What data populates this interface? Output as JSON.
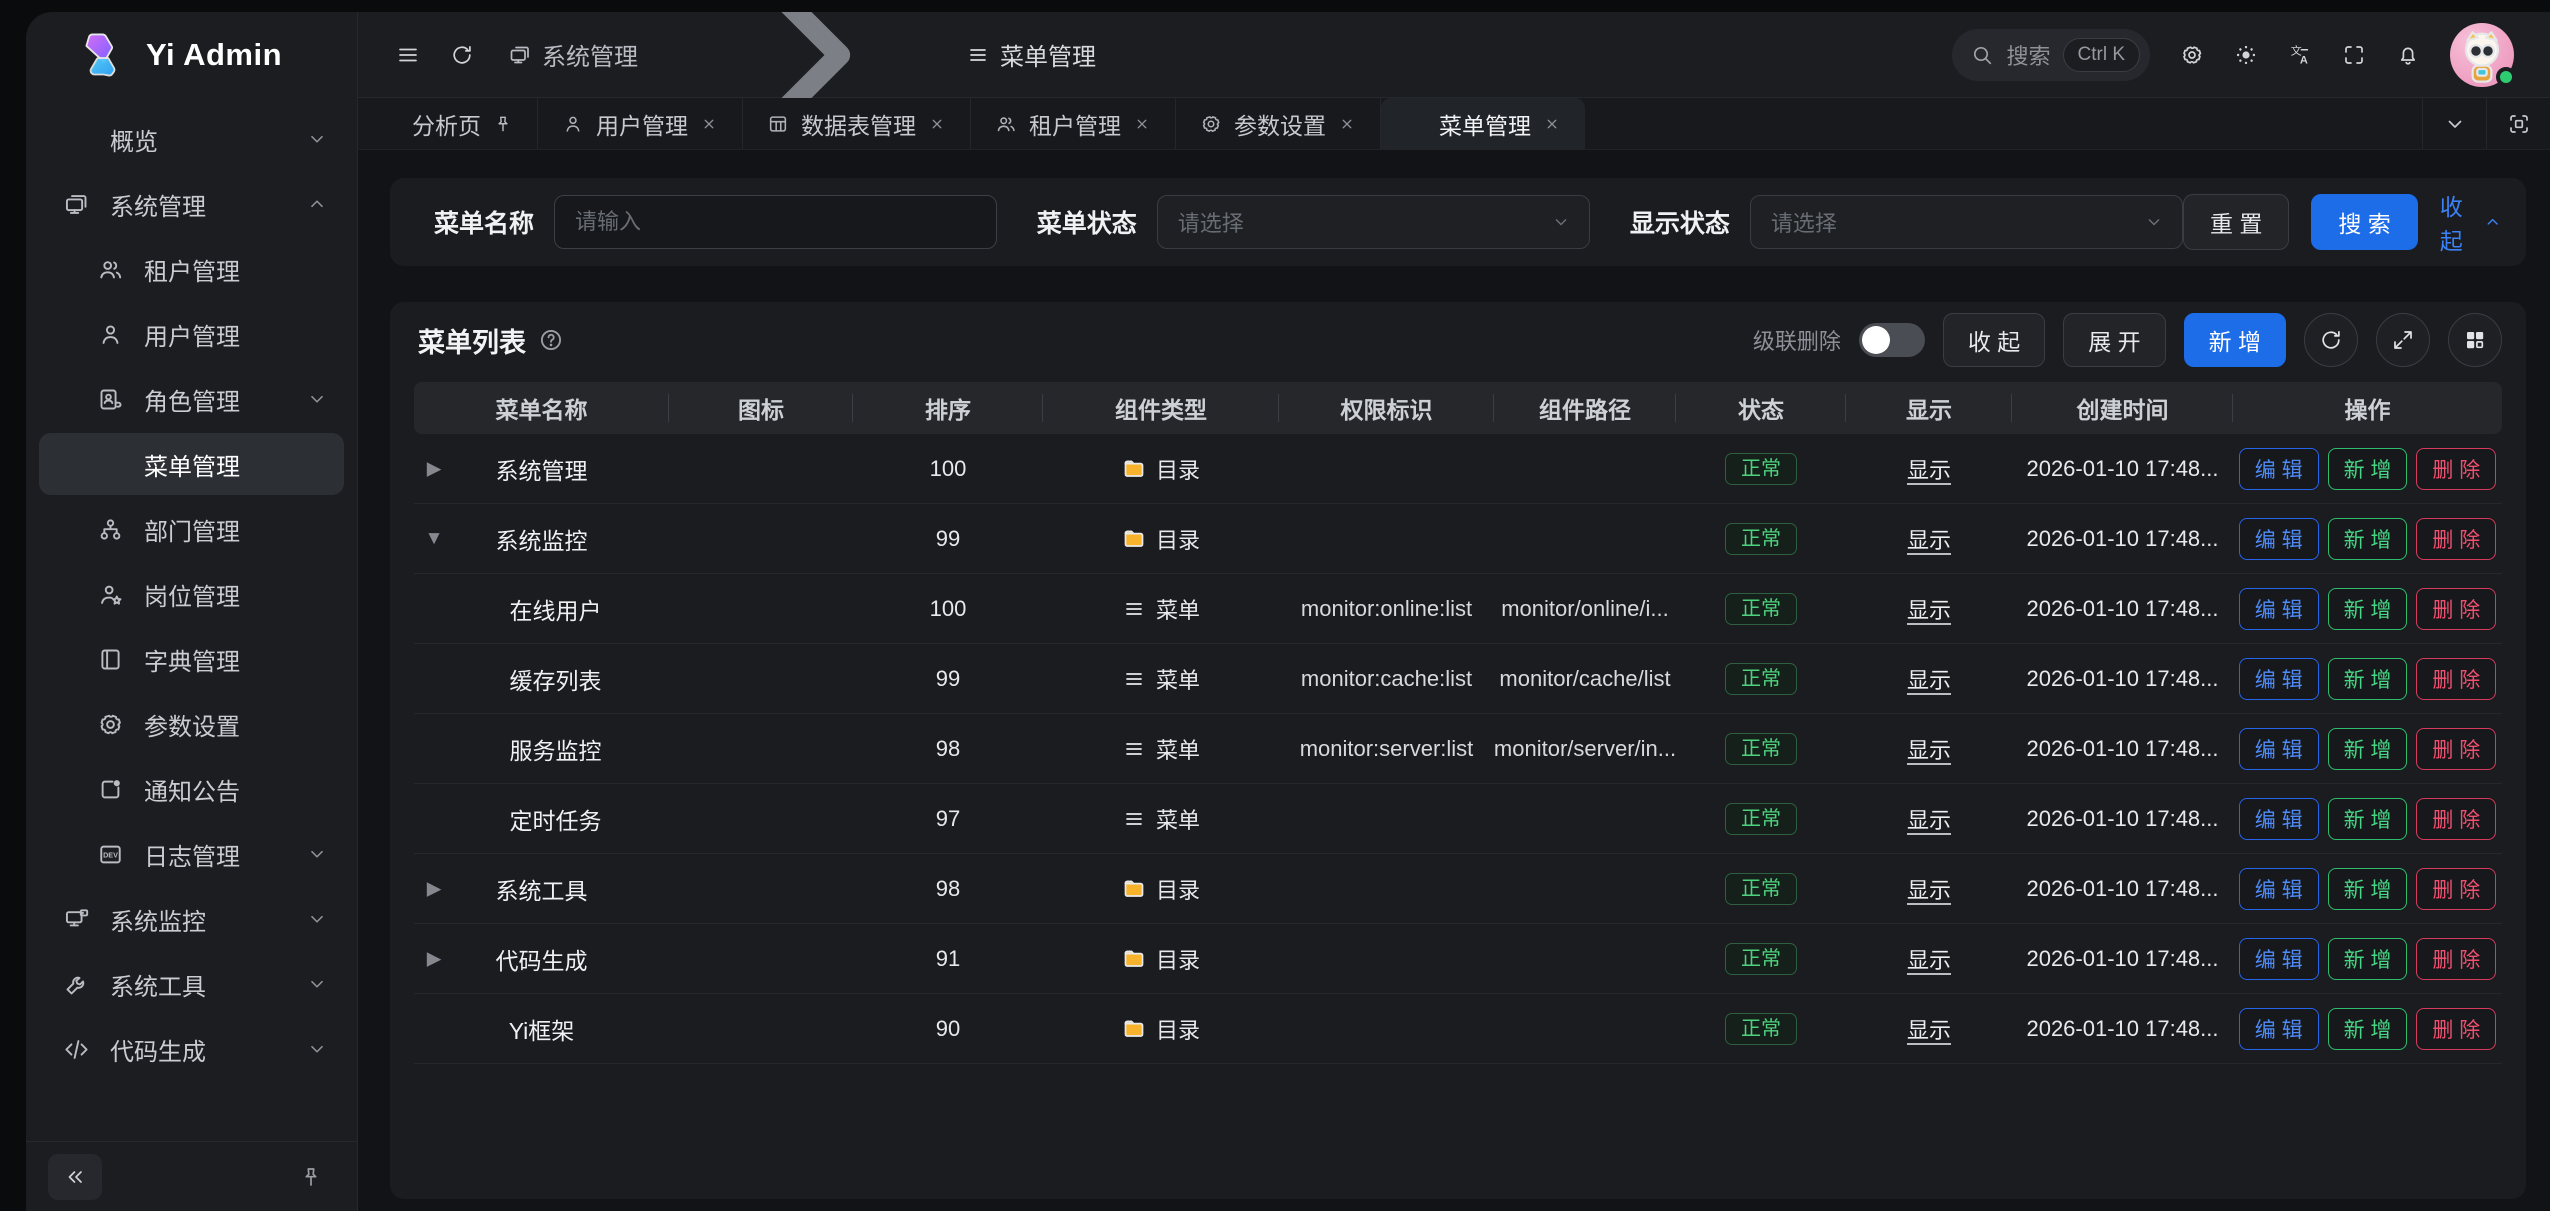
{
  "app": {
    "name": "Yi Admin"
  },
  "header": {
    "breadcrumb": [
      {
        "label": "系统管理",
        "icon": "desktop-icon"
      },
      {
        "label": "菜单管理",
        "icon": "menu-lines-icon"
      }
    ],
    "search": {
      "placeholder": "搜索",
      "shortcut": "Ctrl K"
    }
  },
  "tabs": [
    {
      "label": "分析页",
      "pinned": true
    },
    {
      "label": "用户管理",
      "icon": "person",
      "closable": true
    },
    {
      "label": "数据表管理",
      "icon": "table",
      "closable": true
    },
    {
      "label": "租户管理",
      "icon": "people",
      "closable": true
    },
    {
      "label": "参数设置",
      "icon": "gear",
      "closable": true
    },
    {
      "label": "菜单管理",
      "icon": "menu-lines",
      "closable": true,
      "active": true
    }
  ],
  "sidebar": {
    "items": [
      {
        "label": "概览",
        "icon": "menu-lines",
        "chevron": "down",
        "level": 0
      },
      {
        "label": "系统管理",
        "icon": "desktop",
        "chevron": "up",
        "level": 0
      },
      {
        "label": "租户管理",
        "icon": "people",
        "level": 1
      },
      {
        "label": "用户管理",
        "icon": "person",
        "level": 1
      },
      {
        "label": "角色管理",
        "icon": "idcard",
        "chevron": "down",
        "level": 1
      },
      {
        "label": "菜单管理",
        "icon": "menu-lines",
        "level": 1,
        "active": true
      },
      {
        "label": "部门管理",
        "icon": "org",
        "level": 1
      },
      {
        "label": "岗位管理",
        "icon": "person-star",
        "level": 1
      },
      {
        "label": "字典管理",
        "icon": "book",
        "level": 1
      },
      {
        "label": "参数设置",
        "icon": "gear",
        "level": 1
      },
      {
        "label": "通知公告",
        "icon": "announce",
        "level": 1
      },
      {
        "label": "日志管理",
        "icon": "dev",
        "chevron": "down",
        "level": 1
      },
      {
        "label": "系统监控",
        "icon": "monitor-server",
        "chevron": "down",
        "level": 0
      },
      {
        "label": "系统工具",
        "icon": "wrench",
        "chevron": "down",
        "level": 0
      },
      {
        "label": "代码生成",
        "icon": "code",
        "chevron": "down",
        "level": 0
      }
    ]
  },
  "filter": {
    "fields": [
      {
        "label": "菜单名称",
        "placeholder": "请输入",
        "type": "input"
      },
      {
        "label": "菜单状态",
        "placeholder": "请选择",
        "type": "select"
      },
      {
        "label": "显示状态",
        "placeholder": "请选择",
        "type": "select"
      }
    ],
    "reset_label": "重 置",
    "search_label": "搜 索",
    "collapse_label": "收起"
  },
  "table": {
    "title": "菜单列表",
    "toolbar": {
      "cascade_label": "级联删除",
      "cascade_on": false,
      "collapse_label": "收 起",
      "expand_label": "展 开",
      "add_label": "新 增"
    },
    "columns": [
      "菜单名称",
      "图标",
      "排序",
      "组件类型",
      "权限标识",
      "组件路径",
      "状态",
      "显示",
      "创建时间",
      "操作"
    ],
    "action_labels": [
      "编 辑",
      "新 增",
      "删 除"
    ],
    "rows": [
      {
        "expander": "collapsed",
        "name": "系统管理",
        "icon": "",
        "sort": "100",
        "type": "目录",
        "type_icon": "folder",
        "perm": "",
        "path": "",
        "status": "正常",
        "visible": "显示",
        "created": "2026-01-10 17:48...",
        "child": false
      },
      {
        "expander": "expanded",
        "name": "系统监控",
        "icon": "",
        "sort": "99",
        "type": "目录",
        "type_icon": "folder",
        "perm": "",
        "path": "",
        "status": "正常",
        "visible": "显示",
        "created": "2026-01-10 17:48...",
        "child": false
      },
      {
        "expander": null,
        "name": "在线用户",
        "icon": "",
        "sort": "100",
        "type": "菜单",
        "type_icon": "menu-lines",
        "perm": "monitor:online:list",
        "path": "monitor/online/i...",
        "status": "正常",
        "visible": "显示",
        "created": "2026-01-10 17:48...",
        "child": true
      },
      {
        "expander": null,
        "name": "缓存列表",
        "icon": "",
        "sort": "99",
        "type": "菜单",
        "type_icon": "menu-lines",
        "perm": "monitor:cache:list",
        "path": "monitor/cache/list",
        "status": "正常",
        "visible": "显示",
        "created": "2026-01-10 17:48...",
        "child": true
      },
      {
        "expander": null,
        "name": "服务监控",
        "icon": "",
        "sort": "98",
        "type": "菜单",
        "type_icon": "menu-lines",
        "perm": "monitor:server:list",
        "path": "monitor/server/in...",
        "status": "正常",
        "visible": "显示",
        "created": "2026-01-10 17:48...",
        "child": true
      },
      {
        "expander": null,
        "name": "定时任务",
        "icon": "",
        "sort": "97",
        "type": "菜单",
        "type_icon": "menu-lines",
        "perm": "",
        "path": "",
        "status": "正常",
        "visible": "显示",
        "created": "2026-01-10 17:48...",
        "child": true
      },
      {
        "expander": "collapsed",
        "name": "系统工具",
        "icon": "",
        "sort": "98",
        "type": "目录",
        "type_icon": "folder",
        "perm": "",
        "path": "",
        "status": "正常",
        "visible": "显示",
        "created": "2026-01-10 17:48...",
        "child": false
      },
      {
        "expander": "collapsed",
        "name": "代码生成",
        "icon": "",
        "sort": "91",
        "type": "目录",
        "type_icon": "folder",
        "perm": "",
        "path": "",
        "status": "正常",
        "visible": "显示",
        "created": "2026-01-10 17:48...",
        "child": false
      },
      {
        "expander": null,
        "name": "Yi框架",
        "icon": "",
        "sort": "90",
        "type": "目录",
        "type_icon": "folder",
        "perm": "",
        "path": "",
        "status": "正常",
        "visible": "显示",
        "created": "2026-01-10 17:48...",
        "child": false
      }
    ]
  },
  "colors": {
    "accent_blue": "#1d6ce8",
    "status_green": "#4fd27f",
    "danger_red": "#ef5070",
    "folder_orange": "#f7b32b"
  }
}
